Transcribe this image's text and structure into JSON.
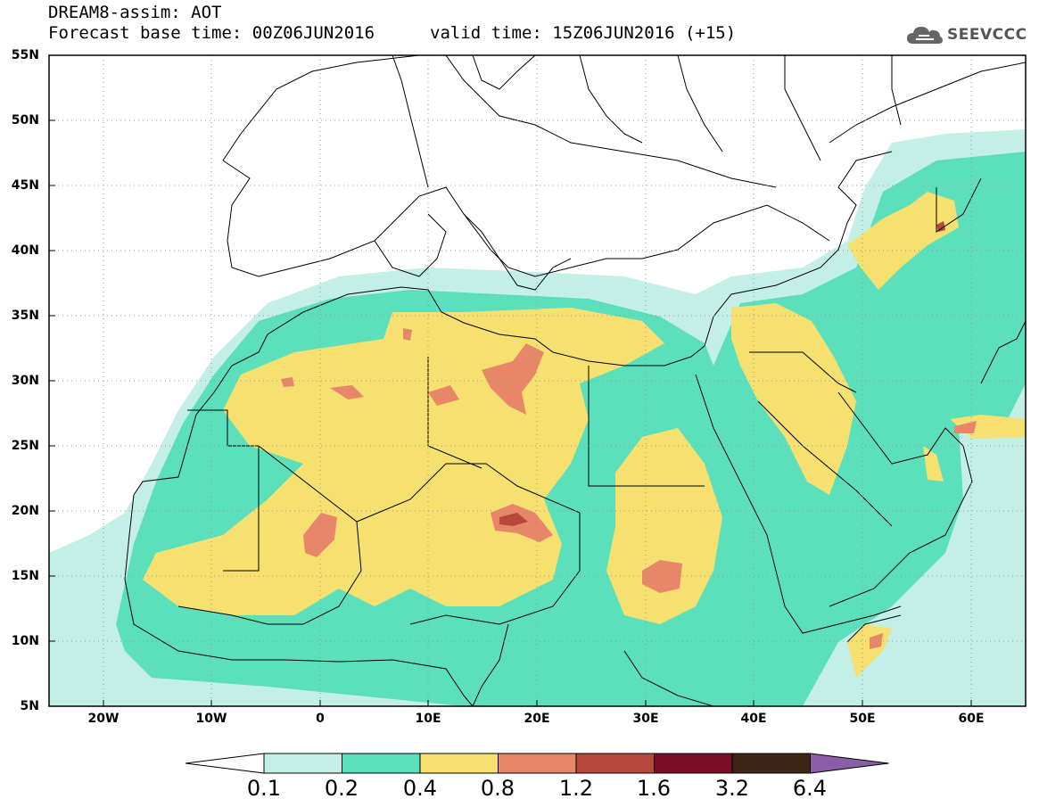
{
  "header": {
    "line1": "DREAM8-assim: AOT",
    "line2": "Forecast base time: 00Z06JUN2016",
    "valid": "valid time: 15Z06JUN2016 (+15)"
  },
  "logo": {
    "text": "SEEVCCC",
    "icon": "cloud-icon"
  },
  "axes": {
    "lat_labels": [
      "55N",
      "50N",
      "45N",
      "40N",
      "35N",
      "30N",
      "25N",
      "20N",
      "15N",
      "10N",
      "5N"
    ],
    "lon_labels": [
      "20W",
      "10W",
      "0",
      "10E",
      "20E",
      "30E",
      "40E",
      "50E",
      "60E"
    ]
  },
  "colorbar": {
    "labels": [
      "0.1",
      "0.2",
      "0.4",
      "0.8",
      "1.2",
      "1.6",
      "3.2",
      "6.4"
    ],
    "colors": [
      "#ffffff",
      "#c4efe6",
      "#5ce0bc",
      "#f5e070",
      "#e8866a",
      "#b8483c",
      "#7a0e28",
      "#3e2616",
      "#8a5ea8"
    ]
  },
  "map": {
    "colors": {
      "level1": "#c4efe6",
      "level2": "#5ce0bc",
      "level3": "#f5e070",
      "level4": "#e8866a",
      "level5": "#b8483c",
      "land": "#ffffff",
      "border": "#000000"
    }
  }
}
